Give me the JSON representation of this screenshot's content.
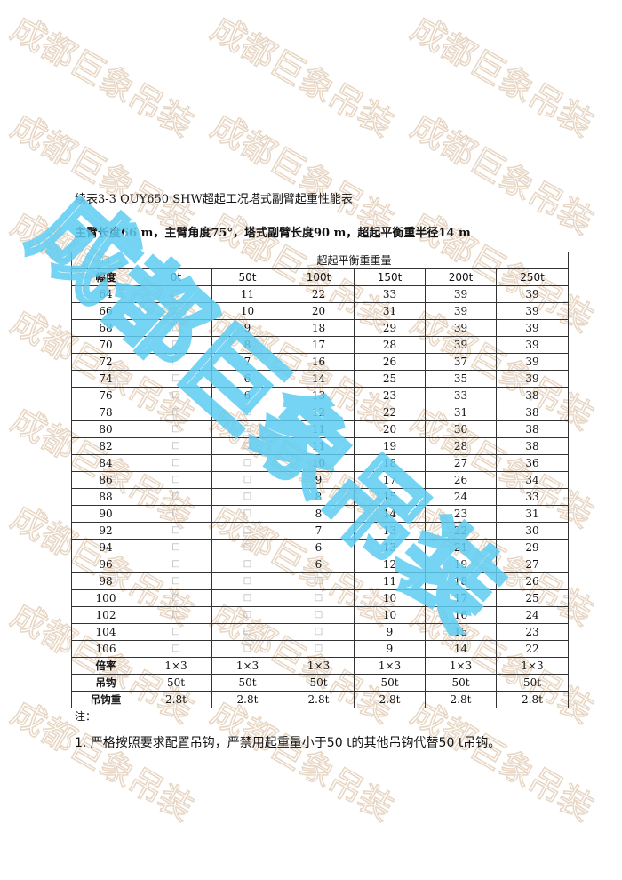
{
  "watermark": {
    "text": "成都巨象吊装",
    "faint_color": "#e8d6c4",
    "accent_color": "#5ecdf2"
  },
  "document": {
    "title": "续表3-3 QUY650 SHW超起工况塔式副臂起重性能表",
    "subtitle": "主臂长度66 m，主臂角度75°，塔式副臂长度90 m，超起平衡重半径14 m"
  },
  "table": {
    "corner": "□",
    "group_header": "超起平衡重重量",
    "row_header": "幅度",
    "columns": [
      "0t",
      "50t",
      "100t",
      "150t",
      "200t",
      "250t"
    ],
    "rows": [
      [
        "64",
        "□",
        "11",
        "22",
        "33",
        "39",
        "39"
      ],
      [
        "66",
        "□",
        "10",
        "20",
        "31",
        "39",
        "39"
      ],
      [
        "68",
        "□",
        "9",
        "18",
        "29",
        "39",
        "39"
      ],
      [
        "70",
        "□",
        "8",
        "17",
        "28",
        "39",
        "39"
      ],
      [
        "72",
        "□",
        "7",
        "16",
        "26",
        "37",
        "39"
      ],
      [
        "74",
        "□",
        "6",
        "14",
        "25",
        "35",
        "39"
      ],
      [
        "76",
        "□",
        "6",
        "13",
        "23",
        "33",
        "38"
      ],
      [
        "78",
        "□",
        "□",
        "12",
        "22",
        "31",
        "38"
      ],
      [
        "80",
        "□",
        "□",
        "11",
        "20",
        "30",
        "38"
      ],
      [
        "82",
        "□",
        "□",
        "11",
        "19",
        "28",
        "38"
      ],
      [
        "84",
        "□",
        "□",
        "10",
        "18",
        "27",
        "36"
      ],
      [
        "86",
        "□",
        "□",
        "9",
        "17",
        "26",
        "34"
      ],
      [
        "88",
        "□",
        "□",
        "8",
        "15",
        "24",
        "33"
      ],
      [
        "90",
        "□",
        "□",
        "8",
        "14",
        "23",
        "31"
      ],
      [
        "92",
        "□",
        "□",
        "7",
        "13",
        "22",
        "30"
      ],
      [
        "94",
        "□",
        "□",
        "6",
        "13",
        "21",
        "29"
      ],
      [
        "96",
        "□",
        "□",
        "6",
        "12",
        "19",
        "27"
      ],
      [
        "98",
        "□",
        "□",
        "□",
        "11",
        "18",
        "26"
      ],
      [
        "100",
        "□",
        "□",
        "□",
        "10",
        "17",
        "25"
      ],
      [
        "102",
        "□",
        "□",
        "□",
        "10",
        "16",
        "24"
      ],
      [
        "104",
        "□",
        "□",
        "□",
        "9",
        "15",
        "23"
      ],
      [
        "106",
        "□",
        "□",
        "□",
        "9",
        "14",
        "22"
      ]
    ],
    "footer_rows": [
      [
        "倍率",
        "1×3",
        "1×3",
        "1×3",
        "1×3",
        "1×3",
        "1×3"
      ],
      [
        "吊钩",
        "50t",
        "50t",
        "50t",
        "50t",
        "50t",
        "50t"
      ],
      [
        "吊钩重",
        "2.8t",
        "2.8t",
        "2.8t",
        "2.8t",
        "2.8t",
        "2.8t"
      ]
    ]
  },
  "notes": {
    "heading": "注：",
    "items": [
      "1. 严格按照要求配置吊钩，严禁用起重量小于50 t的其他吊钩代替50 t吊钩。"
    ]
  }
}
